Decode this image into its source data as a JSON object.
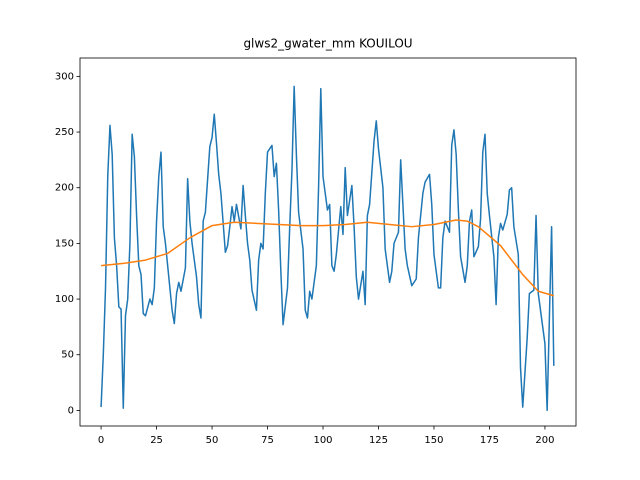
{
  "chart_data": {
    "type": "line",
    "title": "glws2_gwater_mm KOUILOU",
    "xlim": [
      -9.5,
      214
    ],
    "ylim": [
      -14,
      316.5
    ],
    "xticks": [
      0,
      25,
      50,
      75,
      100,
      125,
      150,
      175,
      200
    ],
    "yticks": [
      0,
      50,
      100,
      150,
      200,
      250,
      300
    ],
    "series": [
      {
        "color": "#1f77b4",
        "x": [
          0,
          1,
          2,
          3,
          4,
          5,
          6,
          7,
          8,
          9,
          10,
          11,
          12,
          13,
          14,
          15,
          16,
          17,
          18,
          19,
          20,
          22,
          23,
          24,
          25,
          26,
          27,
          28,
          29,
          31,
          32,
          33,
          34,
          35,
          36,
          38,
          39,
          40,
          41,
          43,
          44,
          45,
          46,
          47,
          49,
          50,
          51,
          52,
          53,
          54,
          56,
          57,
          58,
          59,
          60,
          61,
          63,
          64,
          65,
          66,
          67,
          68,
          70,
          71,
          72,
          73,
          74,
          75,
          77,
          78,
          79,
          80,
          81,
          82,
          84,
          85,
          86,
          87,
          88,
          89,
          91,
          92,
          93,
          94,
          95,
          97,
          98,
          99,
          100,
          102,
          103,
          104,
          105,
          106,
          108,
          109,
          110,
          111,
          113,
          114,
          115,
          116,
          118,
          119,
          120,
          121,
          123,
          124,
          125,
          127,
          128,
          130,
          131,
          132,
          134,
          135,
          137,
          138,
          140,
          142,
          143,
          145,
          146,
          148,
          149,
          150,
          152,
          153,
          154,
          155,
          157,
          158,
          159,
          160,
          161,
          162,
          164,
          165,
          166,
          167,
          168,
          170,
          171,
          172,
          173,
          174,
          175,
          177,
          178,
          179,
          180,
          181,
          183,
          184,
          185,
          186,
          188,
          189,
          190,
          192,
          193,
          195,
          196,
          197,
          199,
          200,
          201,
          203,
          204
        ],
        "values": [
          3,
          50,
          110,
          210,
          256,
          230,
          155,
          130,
          93,
          91,
          2,
          85,
          100,
          150,
          248,
          228,
          175,
          130,
          122,
          87,
          85,
          100,
          95,
          110,
          170,
          210,
          232,
          165,
          150,
          110,
          90,
          78,
          105,
          115,
          107,
          128,
          208,
          170,
          150,
          120,
          95,
          83,
          170,
          178,
          237,
          245,
          266,
          240,
          212,
          195,
          142,
          148,
          165,
          183,
          170,
          185,
          163,
          202,
          175,
          150,
          135,
          108,
          90,
          135,
          150,
          145,
          195,
          232,
          238,
          210,
          222,
          180,
          125,
          77,
          110,
          165,
          215,
          291,
          230,
          178,
          145,
          90,
          83,
          107,
          100,
          130,
          200,
          289,
          210,
          180,
          185,
          130,
          125,
          140,
          183,
          158,
          218,
          175,
          202,
          165,
          120,
          100,
          125,
          95,
          175,
          185,
          242,
          260,
          235,
          200,
          145,
          115,
          125,
          150,
          160,
          225,
          145,
          130,
          112,
          118,
          155,
          195,
          205,
          212,
          185,
          140,
          110,
          110,
          155,
          170,
          160,
          238,
          252,
          230,
          180,
          138,
          115,
          130,
          170,
          180,
          138,
          147,
          172,
          232,
          248,
          195,
          175,
          138,
          95,
          155,
          168,
          162,
          176,
          198,
          200,
          165,
          140,
          38,
          3,
          65,
          105,
          108,
          175,
          105,
          75,
          60,
          0,
          165,
          40
        ]
      },
      {
        "color": "#ff7f0e",
        "x": [
          0,
          10,
          20,
          30,
          40,
          50,
          60,
          70,
          80,
          90,
          100,
          110,
          120,
          130,
          140,
          150,
          160,
          165,
          170,
          180,
          190,
          197,
          204
        ],
        "values": [
          130,
          132,
          135,
          141,
          155,
          166,
          169,
          168,
          167,
          166,
          166,
          167,
          169,
          167,
          165,
          167,
          171,
          170,
          165,
          148,
          122,
          107,
          103
        ]
      }
    ]
  }
}
